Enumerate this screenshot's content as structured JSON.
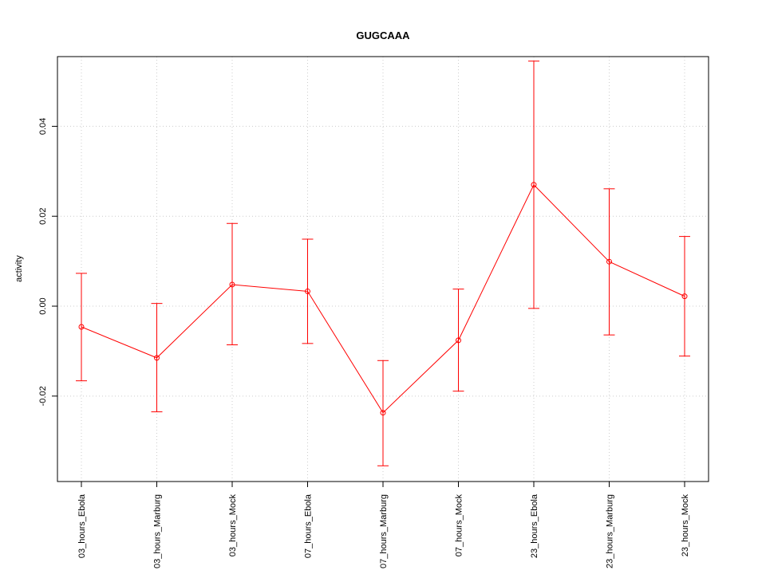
{
  "chart_data": {
    "type": "line",
    "title": "GUGCAAA",
    "xlabel": "",
    "ylabel": "activity",
    "categories": [
      "03_hours_Ebola",
      "03_hours_Marburg",
      "03_hours_Mock",
      "07_hours_Ebola",
      "07_hours_Marburg",
      "07_hours_Mock",
      "23_hours_Ebola",
      "23_hours_Marburg",
      "23_hours_Mock"
    ],
    "series": [
      {
        "values": [
          -0.0046,
          -0.0115,
          0.0048,
          0.0033,
          -0.0237,
          -0.0076,
          0.027,
          0.0099,
          0.0022
        ],
        "lower": [
          -0.0166,
          -0.0235,
          -0.0086,
          -0.0083,
          -0.0355,
          -0.0189,
          -0.0005,
          -0.0064,
          -0.0111
        ],
        "upper": [
          0.0073,
          0.0006,
          0.0184,
          0.0149,
          -0.0121,
          0.0038,
          0.0545,
          0.0261,
          0.0155
        ],
        "color": "#ff0000"
      }
    ],
    "yticks": [
      "-0.02",
      "0.00",
      "0.02",
      "0.04"
    ],
    "ylim": [
      -0.039,
      0.0555
    ],
    "grid": true,
    "legend": "none"
  }
}
